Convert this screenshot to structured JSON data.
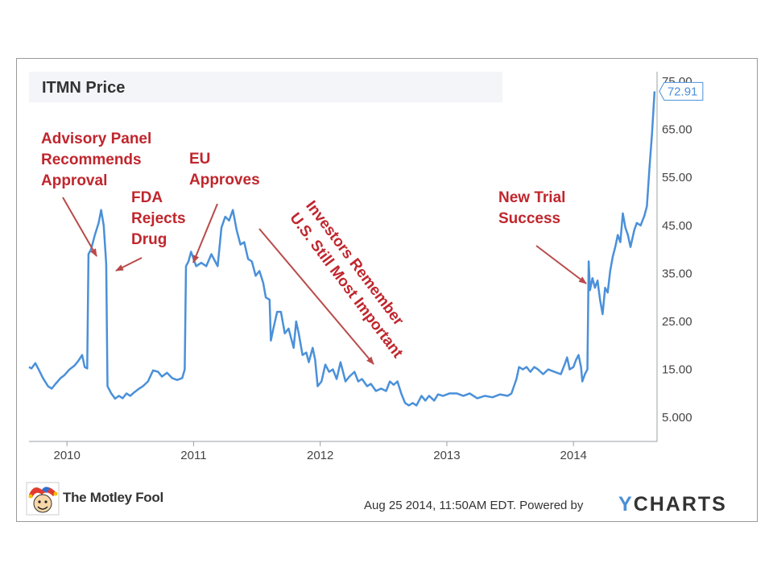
{
  "chart_data": {
    "type": "line",
    "title": "ITMN Price",
    "x_ticks": [
      "2010",
      "2011",
      "2012",
      "2013",
      "2014"
    ],
    "y_ticks": [
      "5.000",
      "15.00",
      "25.00",
      "35.00",
      "45.00",
      "55.00",
      "65.00",
      "75.00"
    ],
    "ylim": [
      0,
      77
    ],
    "xlim": [
      2009.7,
      2014.66
    ],
    "grid": false,
    "last_value_label": "72.91",
    "series": [
      {
        "color": "#4a90d9",
        "points": [
          [
            2009.7,
            15.5
          ],
          [
            2009.72,
            15.2
          ],
          [
            2009.75,
            16.3
          ],
          [
            2009.78,
            14.8
          ],
          [
            2009.81,
            13.2
          ],
          [
            2009.85,
            11.5
          ],
          [
            2009.88,
            11.0
          ],
          [
            2009.91,
            12.0
          ],
          [
            2009.95,
            13.2
          ],
          [
            2009.98,
            13.8
          ],
          [
            2010.02,
            15.0
          ],
          [
            2010.06,
            15.8
          ],
          [
            2010.09,
            16.8
          ],
          [
            2010.12,
            18.0
          ],
          [
            2010.14,
            15.5
          ],
          [
            2010.16,
            15.2
          ],
          [
            2010.17,
            39.0
          ],
          [
            2010.19,
            40.0
          ],
          [
            2010.22,
            43.0
          ],
          [
            2010.25,
            45.5
          ],
          [
            2010.27,
            48.2
          ],
          [
            2010.29,
            45.0
          ],
          [
            2010.31,
            37.0
          ],
          [
            2010.32,
            11.5
          ],
          [
            2010.35,
            10.0
          ],
          [
            2010.38,
            8.9
          ],
          [
            2010.41,
            9.5
          ],
          [
            2010.44,
            9.0
          ],
          [
            2010.47,
            10.0
          ],
          [
            2010.5,
            9.5
          ],
          [
            2010.53,
            10.2
          ],
          [
            2010.57,
            11.0
          ],
          [
            2010.6,
            11.5
          ],
          [
            2010.64,
            12.5
          ],
          [
            2010.68,
            14.8
          ],
          [
            2010.72,
            14.5
          ],
          [
            2010.75,
            13.5
          ],
          [
            2010.79,
            14.3
          ],
          [
            2010.83,
            13.2
          ],
          [
            2010.87,
            12.8
          ],
          [
            2010.91,
            13.2
          ],
          [
            2010.93,
            15.0
          ],
          [
            2010.94,
            36.5
          ],
          [
            2010.96,
            37.5
          ],
          [
            2010.98,
            39.5
          ],
          [
            2011.02,
            36.5
          ],
          [
            2011.06,
            37.2
          ],
          [
            2011.1,
            36.5
          ],
          [
            2011.14,
            39.0
          ],
          [
            2011.16,
            38.0
          ],
          [
            2011.19,
            36.5
          ],
          [
            2011.22,
            44.5
          ],
          [
            2011.25,
            46.8
          ],
          [
            2011.28,
            46.0
          ],
          [
            2011.31,
            48.2
          ],
          [
            2011.34,
            44.0
          ],
          [
            2011.37,
            41.0
          ],
          [
            2011.4,
            41.5
          ],
          [
            2011.43,
            38.0
          ],
          [
            2011.46,
            37.5
          ],
          [
            2011.49,
            34.5
          ],
          [
            2011.52,
            35.5
          ],
          [
            2011.55,
            33.0
          ],
          [
            2011.57,
            30.0
          ],
          [
            2011.6,
            29.5
          ],
          [
            2011.61,
            21.0
          ],
          [
            2011.63,
            23.5
          ],
          [
            2011.66,
            27.0
          ],
          [
            2011.69,
            27.0
          ],
          [
            2011.72,
            22.5
          ],
          [
            2011.75,
            23.5
          ],
          [
            2011.79,
            19.5
          ],
          [
            2011.81,
            25.0
          ],
          [
            2011.83,
            22.5
          ],
          [
            2011.86,
            18.0
          ],
          [
            2011.89,
            18.5
          ],
          [
            2011.91,
            16.5
          ],
          [
            2011.94,
            19.5
          ],
          [
            2011.96,
            17.0
          ],
          [
            2011.98,
            11.5
          ],
          [
            2012.01,
            12.5
          ],
          [
            2012.04,
            16.0
          ],
          [
            2012.07,
            14.5
          ],
          [
            2012.1,
            15.0
          ],
          [
            2012.13,
            13.0
          ],
          [
            2012.16,
            16.5
          ],
          [
            2012.2,
            12.5
          ],
          [
            2012.23,
            13.5
          ],
          [
            2012.27,
            14.5
          ],
          [
            2012.3,
            12.5
          ],
          [
            2012.33,
            13.0
          ],
          [
            2012.37,
            11.5
          ],
          [
            2012.4,
            12.0
          ],
          [
            2012.44,
            10.5
          ],
          [
            2012.48,
            11.0
          ],
          [
            2012.52,
            10.5
          ],
          [
            2012.55,
            12.5
          ],
          [
            2012.58,
            11.8
          ],
          [
            2012.61,
            12.5
          ],
          [
            2012.64,
            10.0
          ],
          [
            2012.67,
            8.0
          ],
          [
            2012.7,
            7.5
          ],
          [
            2012.73,
            8.0
          ],
          [
            2012.76,
            7.5
          ],
          [
            2012.8,
            9.5
          ],
          [
            2012.83,
            8.5
          ],
          [
            2012.86,
            9.5
          ],
          [
            2012.9,
            8.5
          ],
          [
            2012.93,
            9.8
          ],
          [
            2012.97,
            9.5
          ],
          [
            2013.02,
            10.0
          ],
          [
            2013.08,
            10.0
          ],
          [
            2013.13,
            9.5
          ],
          [
            2013.18,
            10.0
          ],
          [
            2013.24,
            9.0
          ],
          [
            2013.3,
            9.5
          ],
          [
            2013.36,
            9.2
          ],
          [
            2013.42,
            9.8
          ],
          [
            2013.48,
            9.5
          ],
          [
            2013.51,
            10.0
          ],
          [
            2013.53,
            11.5
          ],
          [
            2013.55,
            13.0
          ],
          [
            2013.57,
            15.5
          ],
          [
            2013.6,
            15.0
          ],
          [
            2013.63,
            15.5
          ],
          [
            2013.66,
            14.5
          ],
          [
            2013.69,
            15.5
          ],
          [
            2013.72,
            15.0
          ],
          [
            2013.76,
            14.0
          ],
          [
            2013.8,
            15.0
          ],
          [
            2013.85,
            14.5
          ],
          [
            2013.9,
            14.0
          ],
          [
            2013.93,
            16.0
          ],
          [
            2013.95,
            17.5
          ],
          [
            2013.97,
            15.0
          ],
          [
            2014.0,
            15.5
          ],
          [
            2014.02,
            17.0
          ],
          [
            2014.04,
            18.0
          ],
          [
            2014.06,
            15.5
          ],
          [
            2014.07,
            12.5
          ],
          [
            2014.09,
            14.0
          ],
          [
            2014.11,
            15.0
          ],
          [
            2014.12,
            37.5
          ],
          [
            2014.13,
            31.5
          ],
          [
            2014.15,
            34.0
          ],
          [
            2014.17,
            32.0
          ],
          [
            2014.19,
            33.5
          ],
          [
            2014.21,
            29.5
          ],
          [
            2014.23,
            26.5
          ],
          [
            2014.25,
            32.0
          ],
          [
            2014.27,
            31.0
          ],
          [
            2014.29,
            35.5
          ],
          [
            2014.31,
            38.5
          ],
          [
            2014.33,
            40.5
          ],
          [
            2014.35,
            43.0
          ],
          [
            2014.37,
            41.5
          ],
          [
            2014.39,
            47.5
          ],
          [
            2014.41,
            44.5
          ],
          [
            2014.43,
            43.0
          ],
          [
            2014.45,
            40.5
          ],
          [
            2014.48,
            44.0
          ],
          [
            2014.5,
            45.5
          ],
          [
            2014.53,
            45.0
          ],
          [
            2014.56,
            47.0
          ],
          [
            2014.58,
            49.0
          ],
          [
            2014.6,
            57.0
          ],
          [
            2014.62,
            64.0
          ],
          [
            2014.64,
            72.91
          ]
        ]
      }
    ]
  },
  "annotations": [
    {
      "label": "Advisory Panel\nRecommends\nApproval"
    },
    {
      "label": "FDA\nRejects\nDrug"
    },
    {
      "label": "EU\nApproves"
    },
    {
      "label": "Investors Remember\nU.S. Still Most Important"
    },
    {
      "label": "New Trial\nSuccess"
    }
  ],
  "annotation_color": "#c0262d",
  "footer": {
    "date_text": "Aug 25 2014, 11:50AM EDT.  Powered by",
    "brand_y": "Y",
    "brand_rest": "CHARTS",
    "logo_text": "The Motley Fool",
    "logo_icon": "jester-hat-icon"
  }
}
